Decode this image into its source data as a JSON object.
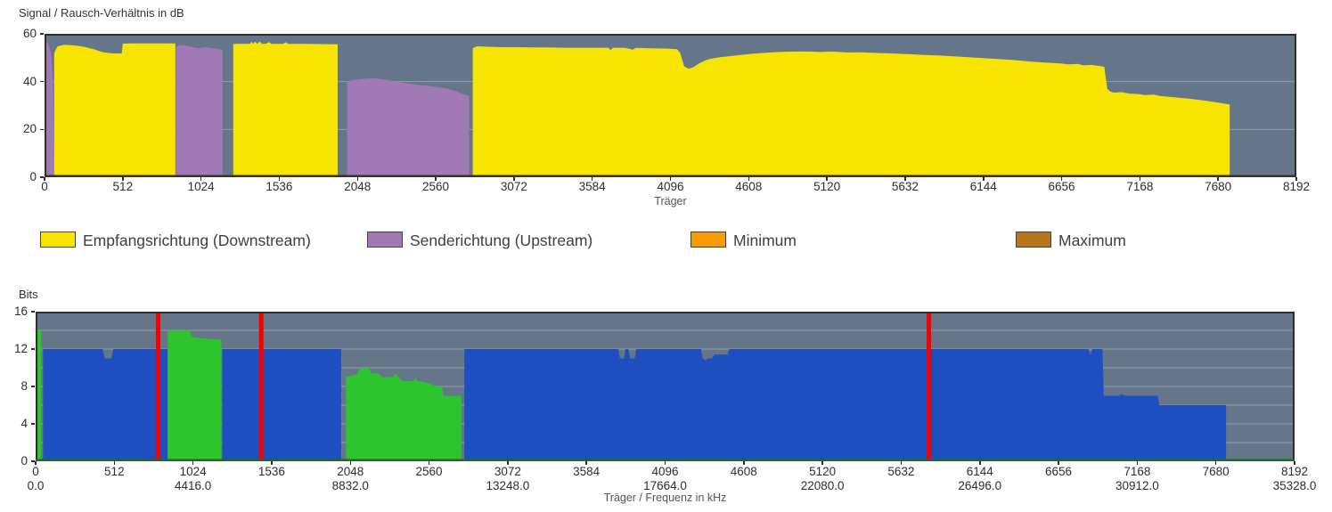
{
  "colors": {
    "plot_background": "#65758a",
    "grid_line": "rgba(255,255,255,0.3)",
    "frame": "#2e2e2e",
    "snr_baseline": "#3a332b",
    "bits_baseline": "#1f6b24",
    "downstream_yellow": "#f7e400",
    "upstream_purple": "#a17ab5",
    "bits_downstream_blue": "#1d4fc0",
    "bits_upstream_green": "#2ec42e",
    "marker_red": "#f40000",
    "minimum_orange": "#f79b04",
    "maximum_brown": "#b5761c"
  },
  "legend": {
    "position": "between-charts",
    "items": [
      {
        "label": "Empfangsrichtung (Downstream)",
        "color": "#f7e400"
      },
      {
        "label": "Senderichtung (Upstream)",
        "color": "#a17ab5"
      },
      {
        "label": "Minimum",
        "color": "#f79b04"
      },
      {
        "label": "Maximum",
        "color": "#b5761c"
      }
    ]
  },
  "chart_data": [
    {
      "id": "snr",
      "type": "area",
      "title": "Signal / Rausch-Verhältnis in dB",
      "xlabel": "Träger",
      "ylabel": "Signal / Rausch-Verhältnis in dB",
      "x_range": [
        0,
        8192
      ],
      "y_range": [
        0,
        60
      ],
      "grid": true,
      "x_ticks": [
        0,
        512,
        1024,
        1536,
        2048,
        2560,
        3072,
        3584,
        4096,
        4608,
        5120,
        5632,
        6144,
        6656,
        7168,
        7680,
        8192
      ],
      "y_ticks": [
        0,
        20,
        40,
        60
      ],
      "gridlines_y": [
        20,
        40
      ],
      "vlines": [],
      "series": [
        {
          "name": "Senderichtung (Upstream)",
          "color": "#a17ab5",
          "segments": [
            [
              [
                2,
                46
              ],
              [
                12,
                57
              ],
              [
                26,
                55.5
              ],
              [
                42,
                52
              ],
              [
                55,
                40
              ],
              [
                62,
                8
              ]
            ],
            [
              [
                860,
                54.5
              ],
              [
                880,
                55.3
              ],
              [
                930,
                55
              ],
              [
                975,
                54.3
              ],
              [
                1010,
                54
              ],
              [
                1045,
                54.4
              ],
              [
                1085,
                54.1
              ],
              [
                1125,
                53.8
              ],
              [
                1165,
                53.2
              ]
            ],
            [
              [
                1980,
                40.2
              ],
              [
                2040,
                40.8
              ],
              [
                2110,
                41.3
              ],
              [
                2160,
                41.4
              ],
              [
                2210,
                41
              ],
              [
                2270,
                40.3
              ],
              [
                2330,
                39.7
              ],
              [
                2390,
                39.1
              ],
              [
                2450,
                38.6
              ],
              [
                2510,
                38.2
              ],
              [
                2570,
                37.7
              ],
              [
                2630,
                37.1
              ],
              [
                2690,
                36
              ],
              [
                2730,
                35
              ],
              [
                2778,
                34
              ]
            ]
          ]
        },
        {
          "name": "Empfangsrichtung (Downstream)",
          "color": "#f7e400",
          "segments": [
            [
              [
                63,
                52
              ],
              [
                85,
                54.8
              ],
              [
                130,
                55.4
              ],
              [
                205,
                55.1
              ],
              [
                265,
                54.5
              ],
              [
                325,
                53.5
              ],
              [
                385,
                52.3
              ],
              [
                445,
                51.8
              ],
              [
                505,
                51.8
              ],
              [
                512,
                55.9
              ],
              [
                570,
                56
              ],
              [
                856,
                56
              ]
            ],
            [
              [
                1235,
                55.8
              ],
              [
                1345,
                55.8
              ],
              [
                1355,
                56.8
              ],
              [
                1365,
                55.8
              ],
              [
                1378,
                56.8
              ],
              [
                1392,
                55.8
              ],
              [
                1408,
                56.8
              ],
              [
                1424,
                55.8
              ],
              [
                1452,
                55.9
              ],
              [
                1468,
                56.6
              ],
              [
                1484,
                55.8
              ],
              [
                1562,
                55.8
              ],
              [
                1578,
                56.5
              ],
              [
                1594,
                55.8
              ],
              [
                1700,
                55.8
              ],
              [
                1810,
                55.7
              ],
              [
                1918,
                55.6
              ]
            ],
            [
              [
                2802,
                54
              ],
              [
                2830,
                54.8
              ],
              [
                2900,
                54.6
              ],
              [
                3000,
                54.4
              ],
              [
                3100,
                54.4
              ],
              [
                3200,
                54.3
              ],
              [
                3300,
                54.3
              ],
              [
                3400,
                54.2
              ],
              [
                3500,
                54.2
              ],
              [
                3600,
                54.2
              ],
              [
                3690,
                54.2
              ],
              [
                3705,
                53.2
              ],
              [
                3720,
                54.2
              ],
              [
                3800,
                54.1
              ],
              [
                3850,
                53.4
              ],
              [
                3870,
                54.1
              ],
              [
                3950,
                54
              ],
              [
                4080,
                53.8
              ],
              [
                4140,
                53.6
              ],
              [
                4160,
                52
              ],
              [
                4185,
                46.5
              ],
              [
                4215,
                45.4
              ],
              [
                4245,
                46
              ],
              [
                4280,
                47.5
              ],
              [
                4320,
                48.8
              ],
              [
                4360,
                49.6
              ],
              [
                4420,
                50.2
              ],
              [
                4500,
                50.8
              ],
              [
                4560,
                51.2
              ],
              [
                4620,
                51.6
              ],
              [
                4700,
                52
              ],
              [
                4800,
                52.4
              ],
              [
                4900,
                52.6
              ],
              [
                5000,
                52.6
              ],
              [
                5080,
                52.4
              ],
              [
                5150,
                52.6
              ],
              [
                5250,
                52.2
              ],
              [
                5350,
                52.3
              ],
              [
                5450,
                52
              ],
              [
                5550,
                51.8
              ],
              [
                5650,
                51.5
              ],
              [
                5750,
                51.2
              ],
              [
                5850,
                51
              ],
              [
                5950,
                50.6
              ],
              [
                6050,
                50.2
              ],
              [
                6150,
                49.8
              ],
              [
                6250,
                49.4
              ],
              [
                6350,
                49
              ],
              [
                6450,
                48.4
              ],
              [
                6550,
                48
              ],
              [
                6650,
                47.6
              ],
              [
                6700,
                47.2
              ],
              [
                6760,
                47.4
              ],
              [
                6800,
                46.8
              ],
              [
                6850,
                47
              ],
              [
                6900,
                46.6
              ],
              [
                6935,
                46.2
              ],
              [
                6955,
                37
              ],
              [
                6975,
                35.8
              ],
              [
                7000,
                35.4
              ],
              [
                7050,
                35.6
              ],
              [
                7100,
                35
              ],
              [
                7160,
                34.8
              ],
              [
                7200,
                34.4
              ],
              [
                7260,
                34.6
              ],
              [
                7300,
                34
              ],
              [
                7400,
                33.4
              ],
              [
                7500,
                32.8
              ],
              [
                7600,
                32
              ],
              [
                7680,
                31.2
              ],
              [
                7740,
                30.6
              ],
              [
                7756,
                30.4
              ]
            ]
          ]
        }
      ]
    },
    {
      "id": "bits",
      "type": "area",
      "title": "Bits",
      "xlabel": "Träger / Frequenz in kHz",
      "ylabel": "Bits",
      "x_range": [
        0,
        8192
      ],
      "y_range": [
        0,
        16
      ],
      "grid": true,
      "x_ticks": [
        0,
        512,
        1024,
        1536,
        2048,
        2560,
        3072,
        3584,
        4096,
        4608,
        5120,
        5632,
        6144,
        6656,
        7168,
        7680,
        8192
      ],
      "y_ticks": [
        0,
        4,
        8,
        12,
        16
      ],
      "gridlines_y": [
        2,
        4,
        6,
        8,
        10,
        12,
        14
      ],
      "freq_tick_labels": [
        {
          "x": 0,
          "label": "0.0"
        },
        {
          "x": 1024,
          "label": "4416.0"
        },
        {
          "x": 2048,
          "label": "8832.0"
        },
        {
          "x": 3072,
          "label": "13248.0"
        },
        {
          "x": 4096,
          "label": "17664.0"
        },
        {
          "x": 5120,
          "label": "22080.0"
        },
        {
          "x": 6144,
          "label": "26496.0"
        },
        {
          "x": 7168,
          "label": "30912.0"
        },
        {
          "x": 8192,
          "label": "35328.0"
        }
      ],
      "vlines": [
        {
          "x": 797,
          "color": "#f40000"
        },
        {
          "x": 1468,
          "color": "#f40000"
        },
        {
          "x": 5812,
          "color": "#f40000"
        }
      ],
      "series": [
        {
          "name": "Bits Empfangsrichtung (Downstream)",
          "color": "#1d4fc0",
          "segments": [
            [
              [
                48,
                12
              ],
              [
                436,
                12
              ],
              [
                450,
                11
              ],
              [
                492,
                11
              ],
              [
                506,
                12
              ],
              [
                858,
                12
              ]
            ],
            [
              [
                1214,
                12
              ],
              [
                1988,
                12
              ]
            ],
            [
              [
                2790,
                12
              ],
              [
                3792,
                12
              ],
              [
                3802,
                11
              ],
              [
                3828,
                11
              ],
              [
                3838,
                12
              ],
              [
                3858,
                12
              ],
              [
                3868,
                11
              ],
              [
                3898,
                11
              ],
              [
                3908,
                12
              ],
              [
                4330,
                12
              ],
              [
                4340,
                11
              ],
              [
                4358,
                10.8
              ],
              [
                4372,
                11
              ],
              [
                4402,
                11
              ],
              [
                4416,
                11.4
              ],
              [
                4502,
                11.4
              ],
              [
                4514,
                12
              ],
              [
                6850,
                12
              ],
              [
                6864,
                11.4
              ],
              [
                6878,
                12
              ],
              [
                6942,
                12
              ],
              [
                6950,
                7
              ],
              [
                7052,
                7
              ],
              [
                7062,
                7.2
              ],
              [
                7092,
                7
              ],
              [
                7302,
                7
              ],
              [
                7312,
                6
              ],
              [
                7746,
                6
              ]
            ]
          ]
        },
        {
          "name": "Bits Senderichtung (Upstream)",
          "color": "#2ec42e",
          "segments": [
            [
              [
                5,
                14
              ],
              [
                37,
                14
              ]
            ],
            [
              [
                860,
                14
              ],
              [
                1004,
                14
              ],
              [
                1014,
                13.3
              ],
              [
                1060,
                13.2
              ],
              [
                1120,
                13.1
              ],
              [
                1209,
                13
              ]
            ],
            [
              [
                2020,
                9
              ],
              [
                2092,
                9.3
              ],
              [
                2112,
                10
              ],
              [
                2172,
                10
              ],
              [
                2182,
                9.4
              ],
              [
                2232,
                9.4
              ],
              [
                2252,
                9
              ],
              [
                2322,
                9
              ],
              [
                2342,
                9.4
              ],
              [
                2362,
                9
              ],
              [
                2382,
                8.6
              ],
              [
                2462,
                8.6
              ],
              [
                2472,
                9
              ],
              [
                2482,
                8.6
              ],
              [
                2525,
                8.5
              ],
              [
                2565,
                8.3
              ],
              [
                2605,
                8
              ],
              [
                2645,
                8
              ],
              [
                2655,
                7
              ],
              [
                2770,
                7
              ]
            ]
          ]
        }
      ]
    }
  ]
}
